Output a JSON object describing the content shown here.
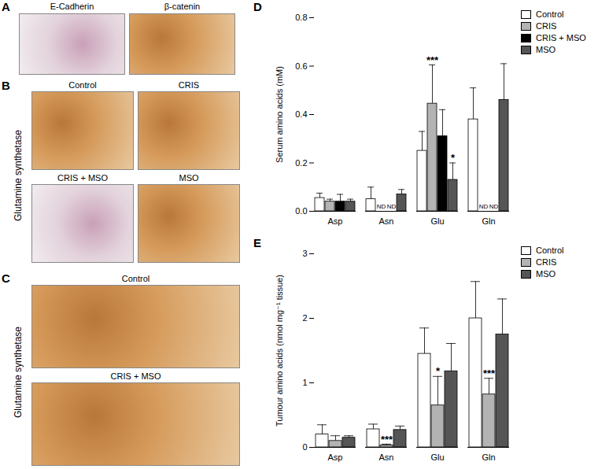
{
  "panels": [
    {
      "label": "A",
      "images": [
        {
          "title": "E-Cadherin"
        },
        {
          "title": "β-catenin"
        }
      ]
    },
    {
      "label": "B",
      "row_label": "Glutamine synthetase",
      "images": [
        {
          "title": "Control"
        },
        {
          "title": "CRIS"
        },
        {
          "title": "CRIS + MSO"
        },
        {
          "title": "MSO"
        }
      ]
    },
    {
      "label": "C",
      "row_label": "Glutamine synthetase",
      "images": [
        {
          "title": "Control"
        },
        {
          "title": "CRIS + MSO"
        }
      ]
    }
  ],
  "chart_data": [
    {
      "type": "bar",
      "panel": "D",
      "y_label": "Serum amino acids (mM)",
      "categories": [
        "Asp",
        "Asn",
        "Glu",
        "Gln"
      ],
      "ylim": [
        0,
        0.8
      ],
      "yticks": [
        {
          "value": 0,
          "label": "0.0"
        },
        {
          "value": 0.2,
          "label": "0.2"
        },
        {
          "value": 0.4,
          "label": "0.4"
        },
        {
          "value": 0.6,
          "label": "0.6"
        },
        {
          "value": 0.8,
          "label": "0.8"
        }
      ],
      "legend": "right",
      "series": [
        {
          "name": "Control",
          "color": "#ffffff",
          "values": [
            0.055,
            0.05,
            0.25,
            0.38
          ],
          "errors": [
            0.02,
            0.05,
            0.08,
            0.13
          ]
        },
        {
          "name": "CRIS",
          "color": "#b3b3b3",
          "values": [
            0.04,
            null,
            0.445,
            null
          ],
          "errors": [
            0.01,
            null,
            0.16,
            null
          ],
          "value_labels": [
            null,
            "ND",
            null,
            "ND"
          ]
        },
        {
          "name": "CRIS + MSO",
          "color": "#000000",
          "values": [
            0.04,
            null,
            0.31,
            null
          ],
          "errors": [
            0.03,
            null,
            0.11,
            null
          ],
          "value_labels": [
            null,
            "ND",
            null,
            "ND"
          ]
        },
        {
          "name": "MSO",
          "color": "#555555",
          "values": [
            0.04,
            0.07,
            0.13,
            0.46
          ],
          "errors": [
            0.01,
            0.02,
            0.07,
            0.15
          ]
        }
      ],
      "annotations": [
        {
          "text": "***",
          "category": "Glu",
          "series": "CRIS"
        },
        {
          "text": "*",
          "category": "Glu",
          "series": "MSO"
        }
      ]
    },
    {
      "type": "bar",
      "panel": "E",
      "y_label": "Tumour amino acids (nmol mg⁻¹ tissue)",
      "categories": [
        "Asp",
        "Asn",
        "Glu",
        "Gln"
      ],
      "ylim": [
        0,
        3
      ],
      "yticks": [
        0,
        1,
        2,
        3
      ],
      "legend": "right",
      "series": [
        {
          "name": "Control",
          "color": "#ffffff",
          "values": [
            0.2,
            0.28,
            1.45,
            2.0
          ],
          "errors": [
            0.15,
            0.08,
            0.4,
            0.57
          ]
        },
        {
          "name": "CRIS",
          "color": "#b3b3b3",
          "values": [
            0.1,
            0.03,
            0.65,
            0.82
          ],
          "errors": [
            0.08,
            0.02,
            0.45,
            0.25
          ]
        },
        {
          "name": "MSO",
          "color": "#555555",
          "values": [
            0.15,
            0.27,
            1.18,
            1.75
          ],
          "errors": [
            0.03,
            0.06,
            0.43,
            0.55
          ]
        }
      ],
      "annotations": [
        {
          "text": "***",
          "category": "Asn",
          "series": "CRIS"
        },
        {
          "text": "*",
          "category": "Glu",
          "series": "CRIS"
        },
        {
          "text": "***",
          "category": "Gln",
          "series": "CRIS"
        }
      ]
    }
  ]
}
